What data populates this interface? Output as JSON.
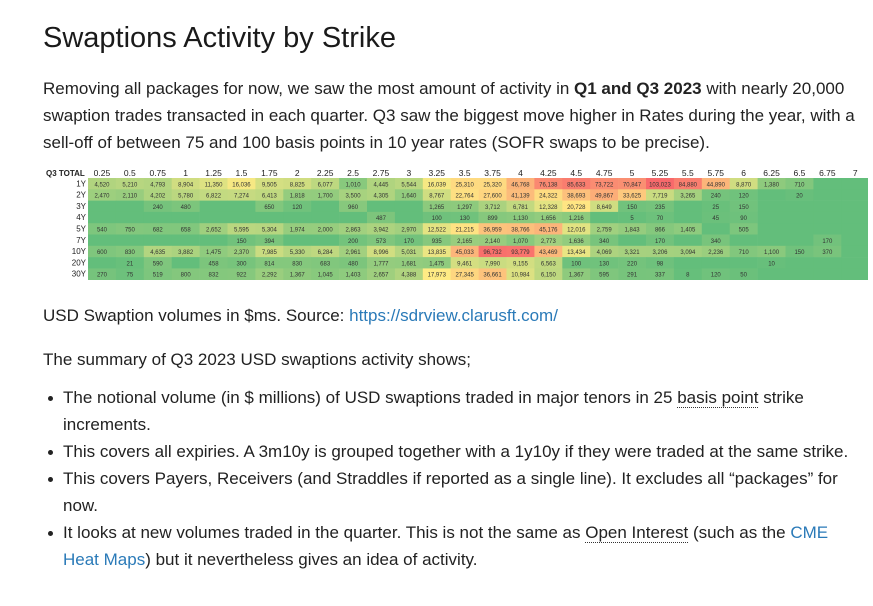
{
  "title": "Swaptions Activity by Strike",
  "intro": {
    "part1": "Removing all packages for now, we saw the most amount of activity in ",
    "bold": "Q1 and Q3 2023",
    "part2": " with nearly 20,000 swaption trades transacted in each quarter. Q3 saw the biggest move higher in Rates during the year, with a sell-off of between 75 and 100 basis points in 10 year rates (SOFR swaps to be precise)."
  },
  "chart_data": {
    "type": "heatmap",
    "corner_label": "Q3 TOTAL",
    "columns": [
      "0.25",
      "0.5",
      "0.75",
      "1",
      "1.25",
      "1.5",
      "1.75",
      "2",
      "2.25",
      "2.5",
      "2.75",
      "3",
      "3.25",
      "3.5",
      "3.75",
      "4",
      "4.25",
      "4.5",
      "4.75",
      "5",
      "5.25",
      "5.5",
      "5.75",
      "6",
      "6.25",
      "6.5",
      "6.75",
      "7"
    ],
    "rows": [
      {
        "label": "1Y",
        "values": [
          "4,520",
          "5,210",
          "4,793",
          "8,904",
          "11,350",
          "16,036",
          "9,505",
          "8,825",
          "6,077",
          "1,010",
          "4,445",
          "5,544",
          "16,039",
          "25,310",
          "25,320",
          "46,768",
          "76,138",
          "85,633",
          "73,722",
          "70,847",
          "103,023",
          "84,880",
          "44,890",
          "8,870",
          "1,380",
          "710",
          "",
          ""
        ]
      },
      {
        "label": "2Y",
        "values": [
          "2,470",
          "2,110",
          "4,202",
          "5,780",
          "6,822",
          "7,274",
          "6,413",
          "1,818",
          "1,700",
          "3,500",
          "4,305",
          "1,640",
          "8,767",
          "22,764",
          "27,600",
          "41,139",
          "24,322",
          "38,693",
          "49,867",
          "33,625",
          "7,719",
          "3,265",
          "240",
          "120",
          "",
          "20",
          "",
          ""
        ]
      },
      {
        "label": "3Y",
        "values": [
          "",
          "",
          "240",
          "480",
          "",
          "",
          "650",
          "120",
          "",
          "960",
          "",
          "",
          "1,265",
          "1,297",
          "3,712",
          "6,781",
          "12,328",
          "20,728",
          "8,649",
          "150",
          "235",
          "",
          "25",
          "150",
          "",
          "",
          "",
          ""
        ]
      },
      {
        "label": "4Y",
        "values": [
          "",
          "",
          "",
          "",
          "",
          "",
          "",
          "",
          "",
          "",
          "487",
          "",
          "100",
          "130",
          "899",
          "1,130",
          "1,656",
          "1,216",
          "",
          "5",
          "70",
          "",
          "45",
          "90",
          "",
          "",
          "",
          ""
        ]
      },
      {
        "label": "5Y",
        "values": [
          "540",
          "750",
          "682",
          "658",
          "2,652",
          "5,595",
          "5,304",
          "1,974",
          "2,000",
          "2,863",
          "3,942",
          "2,970",
          "12,522",
          "21,215",
          "36,959",
          "38,766",
          "45,176",
          "12,016",
          "2,759",
          "1,843",
          "866",
          "1,405",
          "",
          "505",
          "",
          "",
          "",
          ""
        ]
      },
      {
        "label": "7Y",
        "values": [
          "",
          "",
          "",
          "",
          "",
          "150",
          "394",
          "",
          "",
          "200",
          "573",
          "170",
          "935",
          "2,165",
          "2,140",
          "1,070",
          "2,773",
          "1,636",
          "340",
          "",
          "170",
          "",
          "340",
          "",
          "",
          "",
          "170",
          ""
        ]
      },
      {
        "label": "10Y",
        "values": [
          "600",
          "830",
          "4,635",
          "3,882",
          "1,475",
          "2,370",
          "7,985",
          "5,330",
          "6,284",
          "2,961",
          "8,996",
          "5,031",
          "13,835",
          "45,033",
          "96,732",
          "93,779",
          "43,469",
          "13,434",
          "4,069",
          "3,321",
          "3,206",
          "3,094",
          "2,236",
          "710",
          "1,100",
          "150",
          "370",
          ""
        ]
      },
      {
        "label": "20Y",
        "values": [
          "",
          "21",
          "590",
          "",
          "458",
          "300",
          "814",
          "830",
          "683",
          "480",
          "1,777",
          "1,681",
          "1,475",
          "9,461",
          "7,990",
          "9,155",
          "6,563",
          "100",
          "130",
          "220",
          "98",
          "",
          "",
          "",
          "10",
          "",
          "",
          ""
        ]
      },
      {
        "label": "30Y",
        "values": [
          "270",
          "75",
          "519",
          "800",
          "832",
          "922",
          "2,292",
          "1,367",
          "1,045",
          "1,403",
          "2,657",
          "4,388",
          "17,973",
          "27,345",
          "36,661",
          "10,984",
          "6,150",
          "1,367",
          "595",
          "291",
          "337",
          "8",
          "120",
          "50",
          "",
          "",
          "",
          ""
        ]
      }
    ]
  },
  "caption": {
    "text": "USD Swaption volumes in $ms. Source: ",
    "link": "https://sdrview.clarusft.com/"
  },
  "summary": "The summary of Q3 2023 USD swaptions activity shows;",
  "bullets": {
    "b1_pre": "The notional volume (in $ millions) of USD swaptions traded in major tenors in 25 ",
    "b1_term": "basis point",
    "b1_post": " strike increments.",
    "b2": "This covers all expiries. A 3m10y is grouped together with a 1y10y if they were traded at the same strike.",
    "b3": "This covers Payers, Receivers (and Straddles if reported as a single line). It excludes all “packages” for now.",
    "b4_pre": "It looks at new volumes traded in the quarter. This is not the same as ",
    "b4_term": "Open Interest",
    "b4_mid": " (such as the ",
    "b4_link": "CME Heat Maps",
    "b4_post": ") but it nevertheless gives an idea of activity."
  }
}
